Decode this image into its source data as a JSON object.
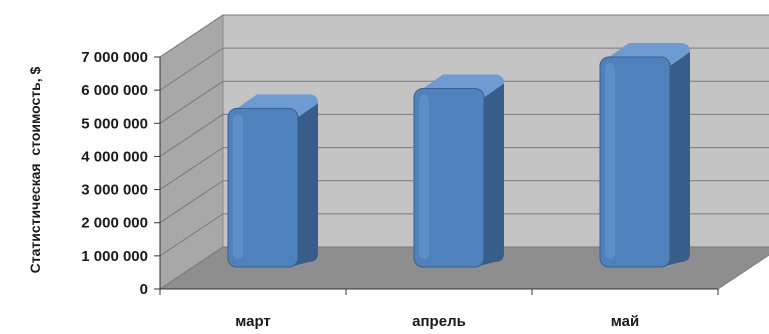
{
  "chart_data": {
    "type": "bar",
    "categories": [
      "март",
      "апрель",
      "май"
    ],
    "values": [
      5450000,
      6050000,
      7000000
    ],
    "ylabel": "Статистическая  стоимость, $",
    "xlabel": "",
    "ylim": [
      0,
      7000000
    ],
    "yticks": [
      0,
      1000000,
      2000000,
      3000000,
      4000000,
      5000000,
      6000000,
      7000000
    ],
    "ytick_labels": [
      "0",
      "1 000 000",
      "2 000 000",
      "3 000 000",
      "4 000 000",
      "5 000 000",
      "6 000 000",
      "7 000 000"
    ],
    "grid": true,
    "style": "3d-column",
    "colors": {
      "bar_front": "#4f81bd",
      "bar_side": "#385d8a",
      "bar_top": "#6f9bd3",
      "back_wall": "#c4c4c4",
      "side_wall": "#a8a8a8",
      "floor": "#8e8e8e",
      "gridline": "#7a7a7a"
    }
  }
}
